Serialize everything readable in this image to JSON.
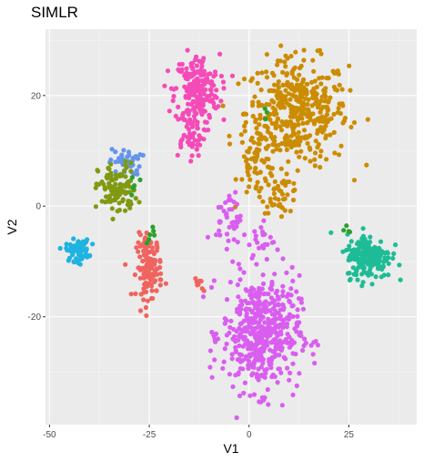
{
  "chart_data": {
    "type": "scatter",
    "title": "SIMLR",
    "xlabel": "V1",
    "ylabel": "V2",
    "xlim": [
      -51,
      42
    ],
    "ylim": [
      -39.5,
      32
    ],
    "x_ticks": [
      -50,
      -25,
      0,
      25
    ],
    "x_tick_labels": [
      "-50",
      "-25",
      "0",
      "25"
    ],
    "y_ticks": [
      -20,
      0,
      20
    ],
    "y_tick_labels": [
      "-20",
      "0",
      "20"
    ],
    "grid": true,
    "panel_background": "#ebebeb",
    "legend": "none",
    "series": [
      {
        "color": "#cc8c00",
        "clusters": [
          {
            "cx": 12,
            "cy": 17,
            "sx": 8,
            "sy": 6,
            "n": 420
          },
          {
            "cx": 2,
            "cy": 8,
            "sx": 3,
            "sy": 4,
            "n": 60
          },
          {
            "cx": 8,
            "cy": 2,
            "sx": 3,
            "sy": 2,
            "n": 40
          }
        ]
      },
      {
        "color": "#f54bb8",
        "clusters": [
          {
            "cx": -13,
            "cy": 21,
            "sx": 3.5,
            "sy": 4,
            "n": 200
          },
          {
            "cx": -15,
            "cy": 13,
            "sx": 2.5,
            "sy": 2.5,
            "n": 50
          }
        ]
      },
      {
        "color": "#6495ed",
        "clusters": [
          {
            "cx": -31,
            "cy": 8,
            "sx": 2.5,
            "sy": 1.5,
            "n": 40
          }
        ]
      },
      {
        "color": "#7f9a12",
        "clusters": [
          {
            "cx": -33,
            "cy": 3,
            "sx": 3,
            "sy": 3,
            "n": 110
          }
        ]
      },
      {
        "color": "#1eb3e0",
        "clusters": [
          {
            "cx": -43,
            "cy": -8,
            "sx": 1.8,
            "sy": 1.2,
            "n": 70
          }
        ]
      },
      {
        "color": "#f0645f",
        "clusters": [
          {
            "cx": -25,
            "cy": -11,
            "sx": 2,
            "sy": 3.5,
            "n": 130
          },
          {
            "cx": -12,
            "cy": -14,
            "sx": 1,
            "sy": 1,
            "n": 8
          }
        ]
      },
      {
        "color": "#d95ef0",
        "clusters": [
          {
            "cx": 3,
            "cy": -23,
            "sx": 6,
            "sy": 6.5,
            "n": 500
          },
          {
            "cx": -5,
            "cy": -2,
            "sx": 2,
            "sy": 3,
            "n": 40
          },
          {
            "cx": 3,
            "cy": -6,
            "sx": 2,
            "sy": 2,
            "n": 20
          }
        ]
      },
      {
        "color": "#1ebc96",
        "clusters": [
          {
            "cx": 30,
            "cy": -9,
            "sx": 3.5,
            "sy": 2.5,
            "n": 200
          }
        ]
      },
      {
        "color": "#2ca02c",
        "clusters": [
          {
            "cx": -25,
            "cy": -5,
            "sx": 1,
            "sy": 1,
            "n": 6
          },
          {
            "cx": -28,
            "cy": 3,
            "sx": 1.5,
            "sy": 1.5,
            "n": 5
          },
          {
            "cx": 24,
            "cy": -4,
            "sx": 1,
            "sy": 1,
            "n": 4
          },
          {
            "cx": 4,
            "cy": 17,
            "sx": 1,
            "sy": 1,
            "n": 3
          }
        ]
      }
    ]
  }
}
